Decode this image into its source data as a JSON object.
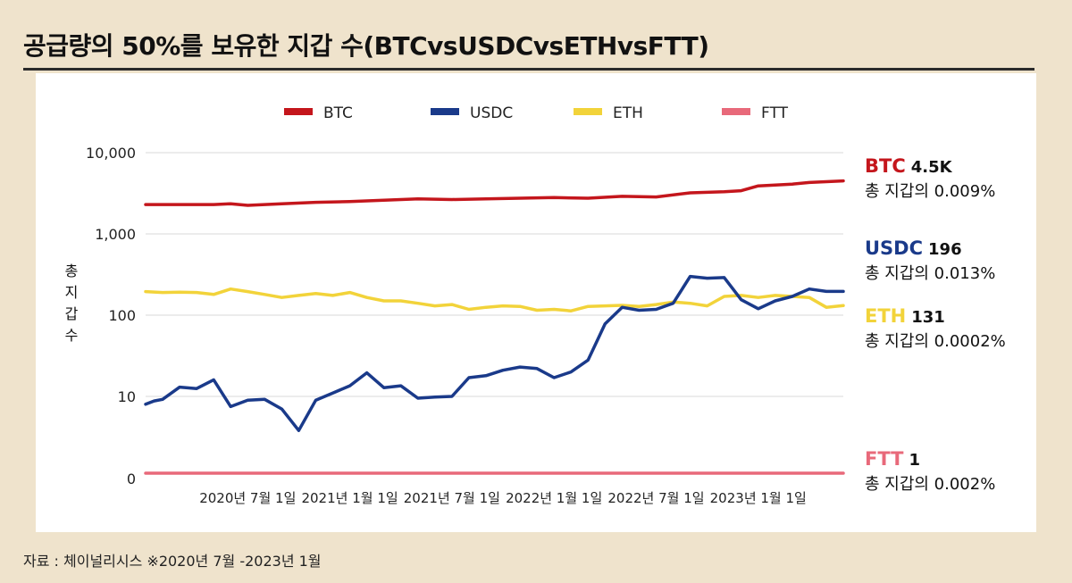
{
  "title": "공급량의 50%를 보유한 지갑 수(BTCvsUSDCvsETHvsFTT)",
  "source": "자료 : 체이널리시스 ※2020년 7월 -2023년 1월",
  "y_axis_label_chars": [
    "총",
    "지",
    "갑",
    "수"
  ],
  "end_labels": [
    {
      "key": "btc",
      "name": "BTC",
      "value": "4.5K",
      "sub": "총 지갑의 0.009%",
      "color": "#c4161c"
    },
    {
      "key": "usdc",
      "name": "USDC",
      "value": "196",
      "sub": "총 지갑의 0.013%",
      "color": "#1a3a8a"
    },
    {
      "key": "eth",
      "name": "ETH",
      "value": "131",
      "sub": "총 지갑의 0.0002%",
      "color": "#f2d33a"
    },
    {
      "key": "ftt",
      "name": "FTT",
      "value": "1",
      "sub": "총 지갑의 0.002%",
      "color": "#e8697a"
    }
  ],
  "chart_data": {
    "type": "line",
    "title": "공급량의 50%를 보유한 지갑 수(BTCvsUSDCvsETHvsFTT)",
    "ylabel": "총 지갑 수",
    "yscale": "log",
    "y_ticks": [
      {
        "value": 10000,
        "label": "10,000"
      },
      {
        "value": 1000,
        "label": "1,000"
      },
      {
        "value": 100,
        "label": "100"
      },
      {
        "value": 10,
        "label": "10"
      },
      {
        "value": 1,
        "label": "0"
      }
    ],
    "x_tick_labels": [
      "2020년 7월 1일",
      "2021년 1월 1일",
      "2021년 7월 1일",
      "2022년 1월 1일",
      "2022년 7월 1일",
      "2023년 1월 1일"
    ],
    "x_tick_positions": [
      6,
      12,
      18,
      24,
      30,
      36
    ],
    "x_range": [
      0,
      41
    ],
    "grid": "horizontal",
    "legend_position": "top",
    "series": [
      {
        "name": "BTC",
        "color": "#c4161c",
        "x": [
          0,
          4,
          5,
          6,
          8,
          10,
          12,
          14,
          16,
          18,
          20,
          22,
          24,
          26,
          28,
          30,
          32,
          34,
          35,
          36,
          38,
          39,
          41
        ],
        "y": [
          2300,
          2300,
          2350,
          2250,
          2350,
          2450,
          2500,
          2600,
          2700,
          2650,
          2700,
          2750,
          2800,
          2750,
          2900,
          2850,
          3200,
          3300,
          3400,
          3900,
          4100,
          4300,
          4500
        ]
      },
      {
        "name": "USDC",
        "color": "#1a3a8a",
        "x": [
          0,
          0.5,
          1,
          2,
          3,
          4,
          5,
          6,
          7,
          8,
          9,
          10,
          11,
          12,
          13,
          14,
          15,
          16,
          17,
          18,
          19,
          20,
          21,
          22,
          23,
          24,
          25,
          26,
          27,
          28,
          29,
          30,
          31,
          32,
          33,
          34,
          35,
          36,
          37,
          38,
          39,
          40,
          41
        ],
        "y": [
          8,
          8.8,
          9.2,
          13,
          12.5,
          16,
          7.5,
          9,
          9.2,
          7,
          3.8,
          9,
          11,
          13.5,
          19.5,
          12.8,
          13.5,
          9.5,
          9.8,
          10,
          17,
          18,
          21,
          23,
          22,
          17,
          20,
          28,
          78,
          125,
          115,
          118,
          140,
          300,
          285,
          290,
          155,
          120,
          150,
          170,
          210,
          196,
          196
        ]
      },
      {
        "name": "ETH",
        "color": "#f2d33a",
        "x": [
          0,
          1,
          2,
          3,
          4,
          5,
          6,
          7,
          8,
          9,
          10,
          11,
          12,
          13,
          14,
          15,
          16,
          17,
          18,
          19,
          20,
          21,
          22,
          23,
          24,
          25,
          26,
          27,
          28,
          29,
          30,
          31,
          32,
          33,
          34,
          35,
          36,
          37,
          38,
          39,
          40,
          41
        ],
        "y": [
          195,
          190,
          192,
          190,
          180,
          210,
          195,
          180,
          165,
          175,
          185,
          175,
          190,
          165,
          150,
          150,
          140,
          130,
          135,
          118,
          125,
          130,
          128,
          115,
          118,
          113,
          128,
          130,
          132,
          128,
          135,
          145,
          140,
          130,
          170,
          175,
          165,
          175,
          170,
          165,
          125,
          131
        ]
      },
      {
        "name": "FTT",
        "color": "#e8697a",
        "x": [
          0,
          41
        ],
        "y": [
          1,
          1
        ]
      }
    ]
  }
}
